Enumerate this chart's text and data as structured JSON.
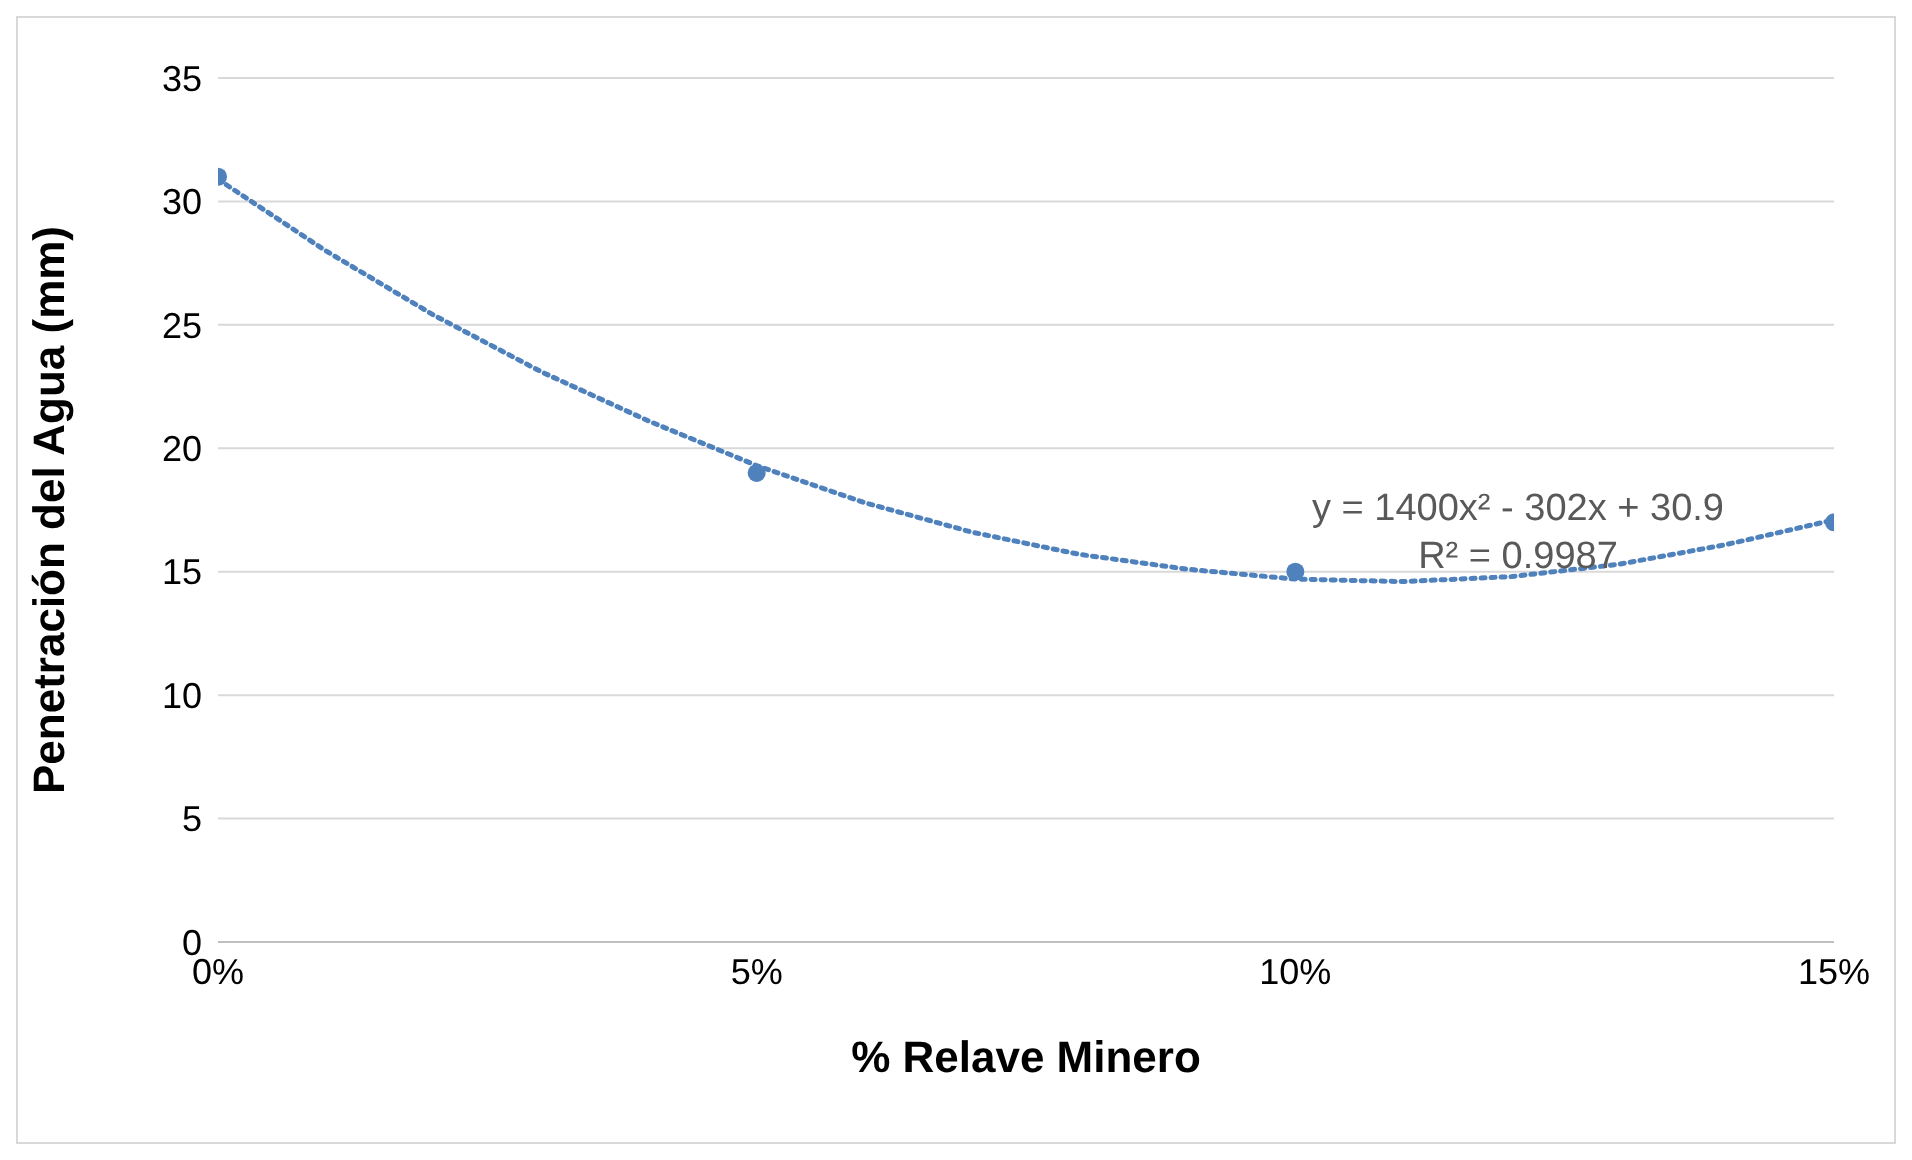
{
  "chart_data": {
    "type": "scatter",
    "xlabel": "% Relave Minero",
    "ylabel": "Penetración del Agua (mm)",
    "xlim": [
      0,
      0.15
    ],
    "xticks": [
      {
        "value": 0,
        "label": "0%"
      },
      {
        "value": 0.05,
        "label": "5%"
      },
      {
        "value": 0.1,
        "label": "10%"
      },
      {
        "value": 0.15,
        "label": "15%"
      }
    ],
    "ylim": [
      0,
      35
    ],
    "yticks": [
      0,
      5,
      10,
      15,
      20,
      25,
      30,
      35
    ],
    "grid": "y",
    "series": [
      {
        "color": "#4f81bd",
        "marker": "circle",
        "x": [
          0,
          0.05,
          0.1,
          0.15
        ],
        "values": [
          31,
          19,
          15,
          17
        ]
      },
      {
        "type": "line",
        "color": "#4f81bd",
        "line_style": "dotted",
        "marker": "none",
        "x": [
          0,
          0.01,
          0.02,
          0.03,
          0.04,
          0.05,
          0.06,
          0.07,
          0.08,
          0.09,
          0.1,
          0.11,
          0.12,
          0.13,
          0.14,
          0.15
        ],
        "values": [
          30.9,
          28.0,
          25.4,
          23.1,
          21.1,
          19.3,
          17.8,
          16.6,
          15.7,
          15.1,
          14.7,
          14.6,
          14.8,
          15.3,
          16.1,
          17.1
        ]
      }
    ],
    "annotations": [
      "y = 1400x² - 302x + 30.9",
      "R² = 0.9987"
    ]
  }
}
